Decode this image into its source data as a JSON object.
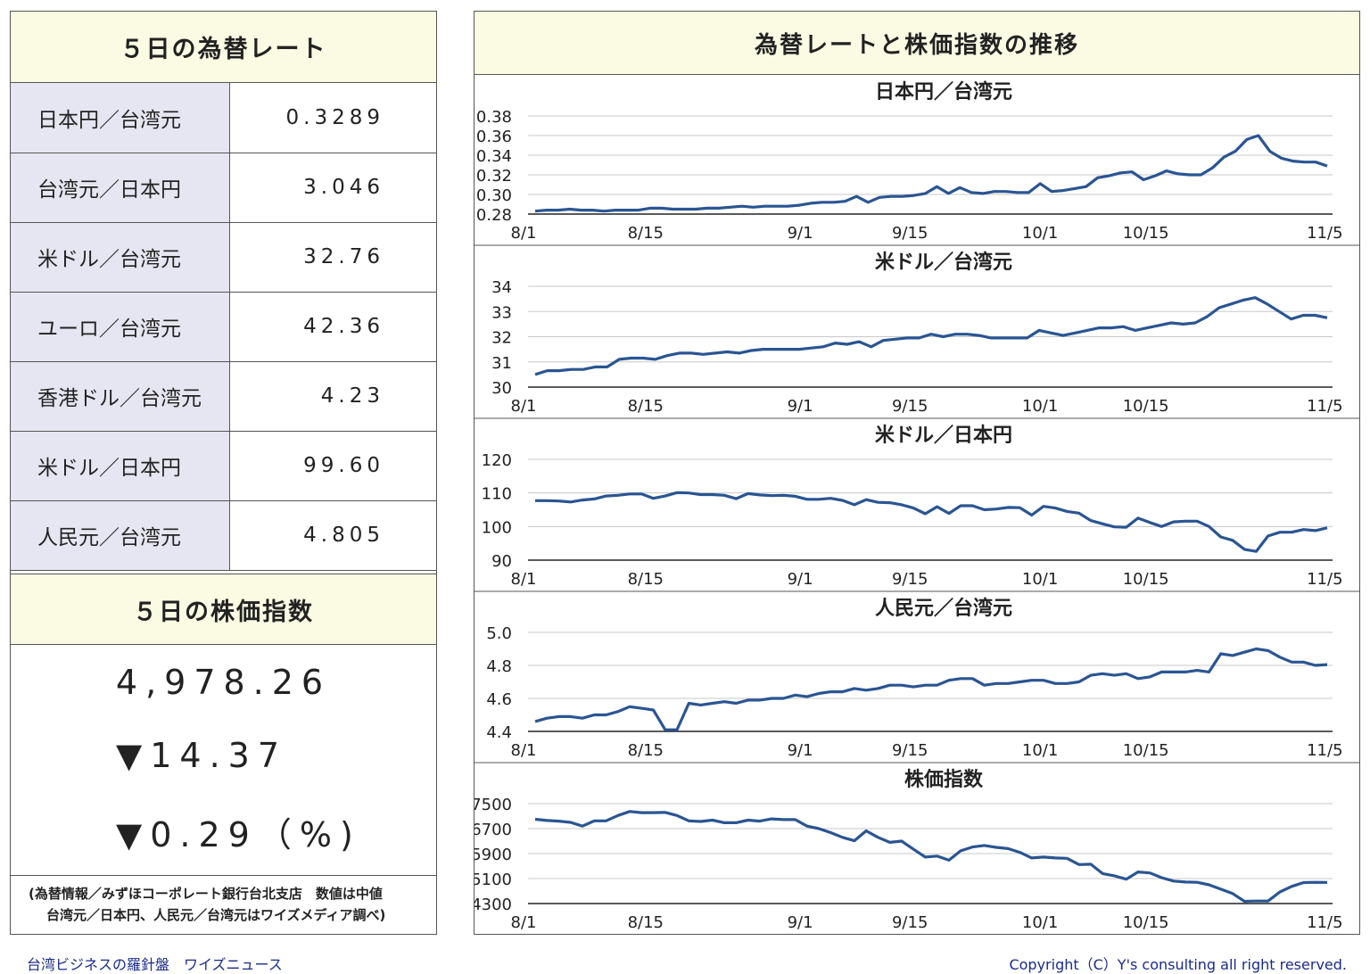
{
  "left": {
    "rates_title": "５日の為替レート",
    "rates": [
      {
        "label": "日本円／台湾元",
        "value": "0.3289"
      },
      {
        "label": "台湾元／日本円",
        "value": "3.046"
      },
      {
        "label": "米ドル／台湾元",
        "value": "32.76"
      },
      {
        "label": "ユーロ／台湾元",
        "value": "42.36"
      },
      {
        "label": "香港ドル／台湾元",
        "value": "4.23"
      },
      {
        "label": "米ドル／日本円",
        "value": "99.60"
      },
      {
        "label": "人民元／台湾元",
        "value": "4.805"
      }
    ],
    "stock_title": "５日の株価指数",
    "stock_value": "4,978.26",
    "stock_change": "▼14.37",
    "stock_change_pct": "▼0.29（%)",
    "note_line1": "(為替情報／みずほコーポレート銀行台北支店　数値は中値",
    "note_line2": "台湾元／日本円、人民元／台湾元はワイズメディア調べ)"
  },
  "right": {
    "title": "為替レートと株価指数の推移"
  },
  "footer": {
    "left": "台湾ビジネスの羅針盤　ワイズニュース",
    "right": "Copyright（C）Y's consulting all right reserved."
  },
  "chart_data": [
    {
      "type": "line",
      "title": "日本円／台湾元",
      "x_ticks": [
        "8/1",
        "8/15",
        "9/1",
        "9/15",
        "10/1",
        "10/15",
        "11/5"
      ],
      "y_ticks": [
        "0.38",
        "0.36",
        "0.34",
        "0.32",
        "0.30",
        "0.28"
      ],
      "ylim": [
        0.28,
        0.38
      ],
      "color": "#2a5592",
      "values": [
        0.283,
        0.284,
        0.284,
        0.285,
        0.284,
        0.284,
        0.283,
        0.284,
        0.284,
        0.284,
        0.286,
        0.286,
        0.285,
        0.285,
        0.285,
        0.286,
        0.286,
        0.287,
        0.288,
        0.287,
        0.288,
        0.288,
        0.288,
        0.289,
        0.291,
        0.292,
        0.292,
        0.293,
        0.298,
        0.292,
        0.297,
        0.298,
        0.298,
        0.299,
        0.301,
        0.308,
        0.301,
        0.307,
        0.302,
        0.301,
        0.303,
        0.303,
        0.302,
        0.302,
        0.311,
        0.303,
        0.304,
        0.306,
        0.308,
        0.317,
        0.319,
        0.322,
        0.323,
        0.315,
        0.319,
        0.324,
        0.321,
        0.32,
        0.32,
        0.327,
        0.338,
        0.344,
        0.356,
        0.36,
        0.344,
        0.337,
        0.334,
        0.333,
        0.333,
        0.329
      ]
    },
    {
      "type": "line",
      "title": "米ドル／台湾元",
      "x_ticks": [
        "8/1",
        "8/15",
        "9/1",
        "9/15",
        "10/1",
        "10/15",
        "11/5"
      ],
      "y_ticks": [
        "34",
        "33",
        "32",
        "31",
        "30"
      ],
      "ylim": [
        30,
        34
      ],
      "color": "#2a5592",
      "values": [
        30.5,
        30.65,
        30.65,
        30.7,
        30.7,
        30.8,
        30.8,
        31.1,
        31.15,
        31.15,
        31.1,
        31.25,
        31.35,
        31.35,
        31.3,
        31.35,
        31.4,
        31.35,
        31.45,
        31.5,
        31.5,
        31.5,
        31.5,
        31.55,
        31.6,
        31.75,
        31.7,
        31.8,
        31.6,
        31.85,
        31.9,
        31.95,
        31.95,
        32.1,
        32.0,
        32.1,
        32.1,
        32.05,
        31.95,
        31.95,
        31.95,
        31.95,
        32.25,
        32.15,
        32.05,
        32.15,
        32.25,
        32.35,
        32.35,
        32.4,
        32.25,
        32.35,
        32.45,
        32.55,
        32.5,
        32.55,
        32.8,
        33.15,
        33.3,
        33.45,
        33.55,
        33.3,
        33.0,
        32.7,
        32.85,
        32.85,
        32.75
      ]
    },
    {
      "type": "line",
      "title": "米ドル／日本円",
      "x_ticks": [
        "8/1",
        "8/15",
        "9/1",
        "9/15",
        "10/1",
        "10/15",
        "11/5"
      ],
      "y_ticks": [
        "120",
        "110",
        "100",
        "90"
      ],
      "ylim": [
        90,
        120
      ],
      "color": "#2a5592",
      "values": [
        107.7,
        107.7,
        107.6,
        107.3,
        107.9,
        108.2,
        109.1,
        109.3,
        109.7,
        109.7,
        108.4,
        109.1,
        110.1,
        110.0,
        109.5,
        109.5,
        109.3,
        108.3,
        109.8,
        109.4,
        109.2,
        109.3,
        109.0,
        108.1,
        108.1,
        108.4,
        107.8,
        106.5,
        108.0,
        107.2,
        107.1,
        106.5,
        105.5,
        103.8,
        105.9,
        103.9,
        106.2,
        106.2,
        105.0,
        105.2,
        105.7,
        105.6,
        103.4,
        106.0,
        105.5,
        104.5,
        104.0,
        101.8,
        100.8,
        99.9,
        99.8,
        102.5,
        101.2,
        100.0,
        101.4,
        101.6,
        101.6,
        100.0,
        96.9,
        95.9,
        93.2,
        92.6,
        97.2,
        98.3,
        98.3,
        99.1,
        98.8,
        99.6
      ]
    },
    {
      "type": "line",
      "title": "人民元／台湾元",
      "x_ticks": [
        "8/1",
        "8/15",
        "9/1",
        "9/15",
        "10/1",
        "10/15",
        "11/5"
      ],
      "y_ticks": [
        "5.0",
        "4.8",
        "4.6",
        "4.4"
      ],
      "ylim": [
        4.4,
        5.0
      ],
      "color": "#2a5592",
      "values": [
        4.46,
        4.48,
        4.49,
        4.49,
        4.48,
        4.5,
        4.5,
        4.52,
        4.55,
        4.54,
        4.53,
        4.41,
        4.41,
        4.57,
        4.56,
        4.57,
        4.58,
        4.57,
        4.59,
        4.59,
        4.6,
        4.6,
        4.62,
        4.61,
        4.63,
        4.64,
        4.64,
        4.66,
        4.65,
        4.66,
        4.68,
        4.68,
        4.67,
        4.68,
        4.68,
        4.71,
        4.72,
        4.72,
        4.68,
        4.69,
        4.69,
        4.7,
        4.71,
        4.71,
        4.69,
        4.69,
        4.7,
        4.74,
        4.75,
        4.74,
        4.75,
        4.72,
        4.73,
        4.76,
        4.76,
        4.76,
        4.77,
        4.76,
        4.87,
        4.86,
        4.88,
        4.9,
        4.89,
        4.85,
        4.82,
        4.82,
        4.8,
        4.805
      ]
    },
    {
      "type": "line",
      "title": "株価指数",
      "x_ticks": [
        "8/1",
        "8/15",
        "9/1",
        "9/15",
        "10/1",
        "10/15",
        "11/5"
      ],
      "y_ticks": [
        "7500",
        "6700",
        "5900",
        "5100",
        "4300"
      ],
      "ylim": [
        4300,
        7500
      ],
      "color": "#2a5592",
      "values": [
        7000,
        6960,
        6940,
        6900,
        6780,
        6950,
        6950,
        7120,
        7250,
        7210,
        7210,
        7220,
        7120,
        6950,
        6930,
        6970,
        6890,
        6890,
        6970,
        6940,
        7010,
        6990,
        6990,
        6780,
        6700,
        6570,
        6420,
        6310,
        6630,
        6420,
        6260,
        6300,
        6040,
        5790,
        5820,
        5690,
        5990,
        6110,
        6160,
        6100,
        6060,
        5940,
        5760,
        5790,
        5760,
        5750,
        5550,
        5560,
        5260,
        5190,
        5080,
        5310,
        5280,
        5130,
        5020,
        4990,
        4980,
        4900,
        4760,
        4620,
        4370,
        4380,
        4380,
        4670,
        4850,
        4970,
        4980,
        4978
      ]
    }
  ]
}
